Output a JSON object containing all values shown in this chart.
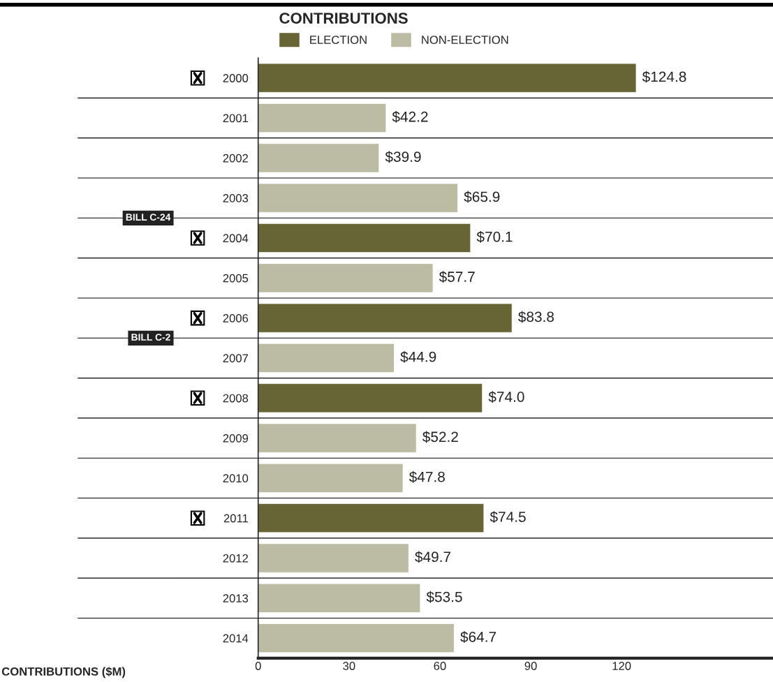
{
  "chart_data": {
    "type": "bar",
    "orientation": "horizontal",
    "legend_title": "CONTRIBUTIONS",
    "legend": "top",
    "categories": [
      "2000",
      "2001",
      "2002",
      "2003",
      "2004",
      "2005",
      "2006",
      "2007",
      "2008",
      "2009",
      "2010",
      "2011",
      "2012",
      "2013",
      "2014"
    ],
    "series": [
      {
        "name": "ELECTION",
        "color": "#676535",
        "values": [
          124.8,
          null,
          null,
          null,
          70.1,
          null,
          83.8,
          null,
          74.0,
          null,
          null,
          74.5,
          null,
          null,
          null
        ],
        "value_labels": [
          "$124.8",
          null,
          null,
          null,
          "$70.1",
          null,
          "$83.8",
          null,
          "$74.0",
          null,
          null,
          "$74.5",
          null,
          null,
          null
        ]
      },
      {
        "name": "NON-ELECTION",
        "color": "#bcbca4",
        "values": [
          null,
          42.2,
          39.9,
          65.9,
          null,
          57.7,
          null,
          44.9,
          null,
          52.2,
          47.8,
          null,
          49.7,
          53.5,
          64.7
        ],
        "value_labels": [
          null,
          "$42.2",
          "$39.9",
          "$65.9",
          null,
          "$57.7",
          null,
          "$44.9",
          null,
          "$52.2",
          "$47.8",
          null,
          "$49.7",
          "$53.5",
          "$64.7"
        ]
      }
    ],
    "xlim": [
      0,
      170
    ],
    "xticks": [
      0,
      30,
      60,
      90,
      120
    ],
    "grid": "y",
    "annotations": [
      "BILL C-24",
      "BILL C-2",
      "CONTRIBUTIONS ($M)"
    ]
  }
}
